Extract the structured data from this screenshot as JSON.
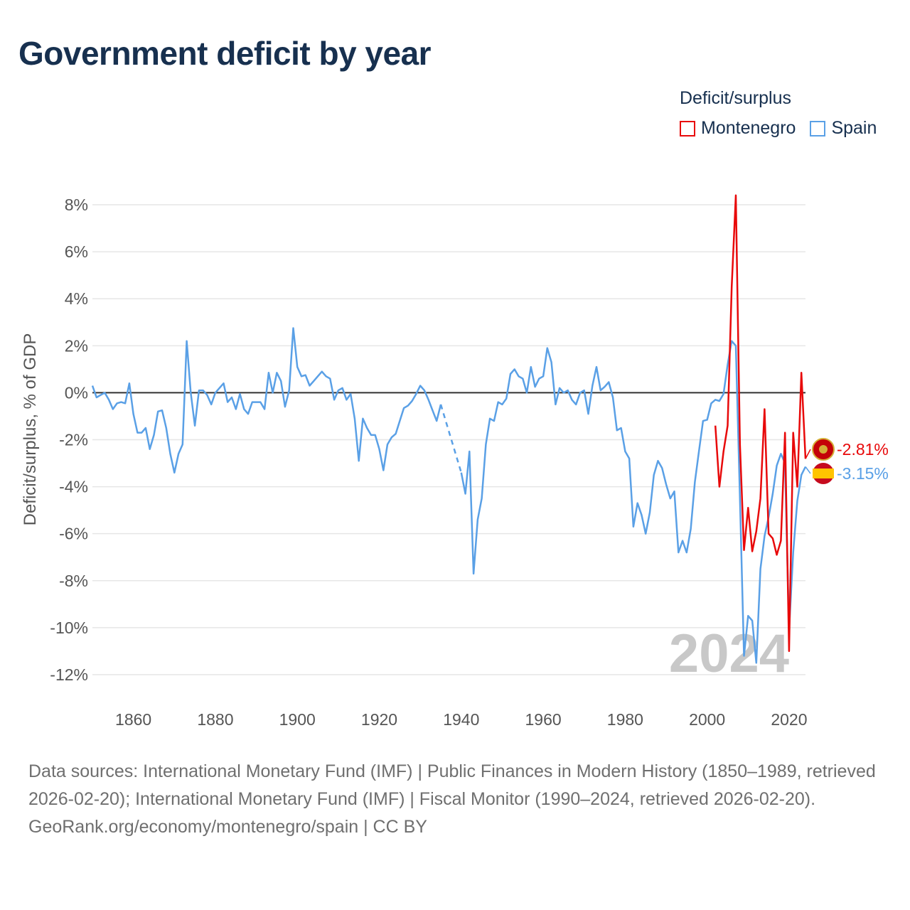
{
  "title": "Government deficit by year",
  "legend": {
    "title": "Deficit/surplus",
    "items": [
      {
        "name": "Montenegro",
        "color": "#e8090a"
      },
      {
        "name": "Spain",
        "color": "#5aa0e6"
      }
    ]
  },
  "chart_data": {
    "type": "line",
    "title": "Government deficit by year",
    "xlabel": "",
    "ylabel": "Deficit/surplus, % of GDP",
    "xlim": [
      1850,
      2024
    ],
    "ylim": [
      -13,
      9
    ],
    "x_ticks": [
      1860,
      1880,
      1900,
      1920,
      1940,
      1960,
      1980,
      2000,
      2020
    ],
    "y_ticks": [
      8,
      6,
      4,
      2,
      0,
      -2,
      -4,
      -6,
      -8,
      -10,
      -12
    ],
    "y_tick_labels": [
      "8%",
      "6%",
      "4%",
      "2%",
      "0%",
      "-2%",
      "-4%",
      "-6%",
      "-8%",
      "-10%",
      "-12%"
    ],
    "x_tick_labels": [
      "1860",
      "1880",
      "1900",
      "1920",
      "1940",
      "1960",
      "1980",
      "2000",
      "2020"
    ],
    "grid": true,
    "reference_line": 0,
    "watermark_year": "2024",
    "series": [
      {
        "name": "Spain",
        "color": "#5aa0e6",
        "end_label": "-3.15%",
        "gap": [
          1935,
          1940
        ],
        "points": [
          [
            1850,
            0.3
          ],
          [
            1851,
            -0.2
          ],
          [
            1852,
            -0.1
          ],
          [
            1853,
            0.0
          ],
          [
            1854,
            -0.3
          ],
          [
            1855,
            -0.7
          ],
          [
            1856,
            -0.45
          ],
          [
            1857,
            -0.4
          ],
          [
            1858,
            -0.45
          ],
          [
            1859,
            0.4
          ],
          [
            1860,
            -0.9
          ],
          [
            1861,
            -1.7
          ],
          [
            1862,
            -1.7
          ],
          [
            1863,
            -1.5
          ],
          [
            1864,
            -2.4
          ],
          [
            1865,
            -1.8
          ],
          [
            1866,
            -0.8
          ],
          [
            1867,
            -0.75
          ],
          [
            1868,
            -1.5
          ],
          [
            1869,
            -2.6
          ],
          [
            1870,
            -3.4
          ],
          [
            1871,
            -2.6
          ],
          [
            1872,
            -2.2
          ],
          [
            1873,
            2.2
          ],
          [
            1874,
            0.0
          ],
          [
            1875,
            -1.4
          ],
          [
            1876,
            0.1
          ],
          [
            1877,
            0.1
          ],
          [
            1878,
            -0.1
          ],
          [
            1879,
            -0.5
          ],
          [
            1880,
            0.0
          ],
          [
            1881,
            0.2
          ],
          [
            1882,
            0.4
          ],
          [
            1883,
            -0.4
          ],
          [
            1884,
            -0.2
          ],
          [
            1885,
            -0.7
          ],
          [
            1886,
            -0.05
          ],
          [
            1887,
            -0.7
          ],
          [
            1888,
            -0.9
          ],
          [
            1889,
            -0.4
          ],
          [
            1890,
            -0.4
          ],
          [
            1891,
            -0.4
          ],
          [
            1892,
            -0.7
          ],
          [
            1893,
            0.85
          ],
          [
            1894,
            0.0
          ],
          [
            1895,
            0.85
          ],
          [
            1896,
            0.5
          ],
          [
            1897,
            -0.6
          ],
          [
            1898,
            0.1
          ],
          [
            1899,
            2.75
          ],
          [
            1900,
            1.1
          ],
          [
            1901,
            0.7
          ],
          [
            1902,
            0.75
          ],
          [
            1903,
            0.3
          ],
          [
            1904,
            0.5
          ],
          [
            1905,
            0.7
          ],
          [
            1906,
            0.9
          ],
          [
            1907,
            0.7
          ],
          [
            1908,
            0.6
          ],
          [
            1909,
            -0.3
          ],
          [
            1910,
            0.1
          ],
          [
            1911,
            0.2
          ],
          [
            1912,
            -0.3
          ],
          [
            1913,
            -0.05
          ],
          [
            1914,
            -1.1
          ],
          [
            1915,
            -2.9
          ],
          [
            1916,
            -1.1
          ],
          [
            1917,
            -1.5
          ],
          [
            1918,
            -1.8
          ],
          [
            1919,
            -1.8
          ],
          [
            1920,
            -2.4
          ],
          [
            1921,
            -3.3
          ],
          [
            1922,
            -2.2
          ],
          [
            1923,
            -1.9
          ],
          [
            1924,
            -1.75
          ],
          [
            1925,
            -1.2
          ],
          [
            1926,
            -0.65
          ],
          [
            1927,
            -0.55
          ],
          [
            1928,
            -0.35
          ],
          [
            1929,
            -0.05
          ],
          [
            1930,
            0.3
          ],
          [
            1931,
            0.1
          ],
          [
            1932,
            -0.3
          ],
          [
            1933,
            -0.75
          ],
          [
            1934,
            -1.2
          ],
          [
            1935,
            -0.5
          ],
          [
            1940,
            -3.4
          ],
          [
            1941,
            -4.3
          ],
          [
            1942,
            -2.5
          ],
          [
            1943,
            -7.7
          ],
          [
            1944,
            -5.4
          ],
          [
            1945,
            -4.5
          ],
          [
            1946,
            -2.2
          ],
          [
            1947,
            -1.1
          ],
          [
            1948,
            -1.2
          ],
          [
            1949,
            -0.4
          ],
          [
            1950,
            -0.5
          ],
          [
            1951,
            -0.25
          ],
          [
            1952,
            0.8
          ],
          [
            1953,
            1.0
          ],
          [
            1954,
            0.7
          ],
          [
            1955,
            0.6
          ],
          [
            1956,
            0.0
          ],
          [
            1957,
            1.1
          ],
          [
            1958,
            0.25
          ],
          [
            1959,
            0.6
          ],
          [
            1960,
            0.7
          ],
          [
            1961,
            1.9
          ],
          [
            1962,
            1.3
          ],
          [
            1963,
            -0.5
          ],
          [
            1964,
            0.2
          ],
          [
            1965,
            0.0
          ],
          [
            1966,
            0.1
          ],
          [
            1967,
            -0.3
          ],
          [
            1968,
            -0.5
          ],
          [
            1969,
            0.0
          ],
          [
            1970,
            0.1
          ],
          [
            1971,
            -0.9
          ],
          [
            1972,
            0.3
          ],
          [
            1973,
            1.1
          ],
          [
            1974,
            0.1
          ],
          [
            1975,
            0.25
          ],
          [
            1976,
            0.45
          ],
          [
            1977,
            -0.2
          ],
          [
            1978,
            -1.6
          ],
          [
            1979,
            -1.5
          ],
          [
            1980,
            -2.5
          ],
          [
            1981,
            -2.8
          ],
          [
            1982,
            -5.7
          ],
          [
            1983,
            -4.7
          ],
          [
            1984,
            -5.2
          ],
          [
            1985,
            -6.0
          ],
          [
            1986,
            -5.1
          ],
          [
            1987,
            -3.5
          ],
          [
            1988,
            -2.9
          ],
          [
            1989,
            -3.2
          ],
          [
            1990,
            -3.9
          ],
          [
            1991,
            -4.5
          ],
          [
            1992,
            -4.2
          ],
          [
            1993,
            -6.8
          ],
          [
            1994,
            -6.3
          ],
          [
            1995,
            -6.8
          ],
          [
            1996,
            -5.8
          ],
          [
            1997,
            -3.8
          ],
          [
            1998,
            -2.5
          ],
          [
            1999,
            -1.2
          ],
          [
            2000,
            -1.15
          ],
          [
            2001,
            -0.45
          ],
          [
            2002,
            -0.3
          ],
          [
            2003,
            -0.35
          ],
          [
            2004,
            -0.05
          ],
          [
            2005,
            1.2
          ],
          [
            2006,
            2.2
          ],
          [
            2007,
            2.0
          ],
          [
            2008,
            -4.5
          ],
          [
            2009,
            -11.2
          ],
          [
            2010,
            -9.5
          ],
          [
            2011,
            -9.7
          ],
          [
            2012,
            -11.5
          ],
          [
            2013,
            -7.5
          ],
          [
            2014,
            -6.1
          ],
          [
            2015,
            -5.3
          ],
          [
            2016,
            -4.3
          ],
          [
            2017,
            -3.1
          ],
          [
            2018,
            -2.6
          ],
          [
            2019,
            -3.0
          ],
          [
            2020,
            -10.1
          ],
          [
            2021,
            -6.8
          ],
          [
            2022,
            -4.6
          ],
          [
            2023,
            -3.5
          ],
          [
            2024,
            -3.15
          ]
        ]
      },
      {
        "name": "Montenegro",
        "color": "#e8090a",
        "end_label": "-2.81%",
        "points": [
          [
            2002,
            -1.4
          ],
          [
            2003,
            -4.0
          ],
          [
            2004,
            -2.5
          ],
          [
            2005,
            -1.4
          ],
          [
            2006,
            4.5
          ],
          [
            2007,
            8.4
          ],
          [
            2008,
            -2.2
          ],
          [
            2009,
            -6.7
          ],
          [
            2010,
            -4.9
          ],
          [
            2011,
            -6.75
          ],
          [
            2012,
            -5.9
          ],
          [
            2013,
            -4.5
          ],
          [
            2014,
            -0.7
          ],
          [
            2015,
            -6.0
          ],
          [
            2016,
            -6.2
          ],
          [
            2017,
            -6.9
          ],
          [
            2018,
            -6.3
          ],
          [
            2019,
            -1.7
          ],
          [
            2020,
            -11.0
          ],
          [
            2021,
            -1.7
          ],
          [
            2022,
            -4.0
          ],
          [
            2023,
            0.85
          ],
          [
            2024,
            -2.81
          ]
        ]
      }
    ]
  },
  "footer": {
    "sources": "Data sources: International Monetary Fund (IMF) | Public Finances in Modern History (1850–1989, retrieved 2026-02-20); International Monetary Fund (IMF) | Fiscal Monitor (1990–2024, retrieved 2026-02-20).",
    "credit": "GeoRank.org/economy/montenegro/spain | CC BY"
  }
}
